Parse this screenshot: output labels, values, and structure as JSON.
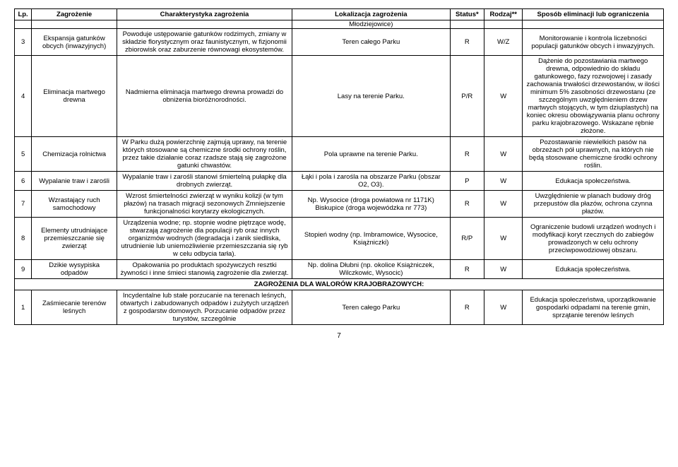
{
  "headers": {
    "lp": "Lp.",
    "zagrozenie": "Zagrożenie",
    "charakterystyka": "Charakterystyka zagrożenia",
    "lokalizacja": "Lokalizacja zagrożenia",
    "status": "Status*",
    "rodzaj": "Rodzaj**",
    "sposob": "Sposób eliminacji lub ograniczenia"
  },
  "prev_lok": "Młodziejowice)",
  "rows": [
    {
      "lp": "3",
      "zag": "Ekspansja gatunków obcych (inwazyjnych)",
      "char": "Powoduje ustępowanie gatunków rodzimych, zmiany w składzie florystycznym oraz faunistycznym, w fizjonomii zbiorowisk oraz zaburzenie równowagi ekosystemów.",
      "lok": "Teren całego Parku",
      "status": "R",
      "rodzaj": "W/Z",
      "spos": "Monitorowanie i kontrola liczebności populacji gatunków obcych i inwazyjnych."
    },
    {
      "lp": "4",
      "zag": "Eliminacja martwego drewna",
      "char": "Nadmierna eliminacja martwego drewna prowadzi do obniżenia bioróżnorodności.",
      "lok": "Lasy na terenie Parku.",
      "status": "P/R",
      "rodzaj": "W",
      "spos": "Dążenie do pozostawiania martwego drewna, odpowiednio do składu gatunkowego, fazy rozwojowej i zasady zachowania trwałości drzewostanów, w ilości minimum 5% zasobności drzewostanu (ze szczególnym uwzględnieniem drzew martwych stojących, w tym dziuplastych) na koniec okresu obowiązywania planu ochrony parku krajobrazowego. Wskazane rębnie złożone."
    },
    {
      "lp": "5",
      "zag": "Chemizacja rolnictwa",
      "char": "W Parku dużą powierzchnię zajmują uprawy, na terenie których stosowane są chemiczne środki ochrony roślin, przez takie działanie coraz rzadsze stają się zagrożone gatunki chwastów.",
      "lok": "Pola uprawne na terenie Parku.",
      "status": "R",
      "rodzaj": "W",
      "spos": "Pozostawanie niewielkich pasów na obrzeżach pół uprawnych, na których nie będą stosowane chemiczne środki ochrony roślin."
    },
    {
      "lp": "6",
      "zag": "Wypalanie traw i zarośli",
      "char": "Wypalanie traw i zarośli stanowi śmiertelną pułapkę dla drobnych zwierząt.",
      "lok": "Łąki i pola i zarośla na obszarze Parku (obszar O2, O3).",
      "status": "P",
      "rodzaj": "W",
      "spos": "Edukacja społeczeństwa."
    },
    {
      "lp": "7",
      "zag": "Wzrastający ruch samochodowy",
      "char": "Wzrost śmiertelności zwierząt w wyniku kolizji (w tym płazów) na trasach migracji sezonowych Zmniejszenie funkcjonalności korytarzy ekologicznych.",
      "lok": "Np. Wysocice (droga powiatowa nr 1171K) Biskupice (droga wojewódzka nr 773)",
      "status": "R",
      "rodzaj": "W",
      "spos": "Uwzględnienie w planach budowy dróg przepustów dla płazów, ochrona czynna płazów."
    },
    {
      "lp": "8",
      "zag": "Elementy utrudniające przemieszczanie się zwierząt",
      "char": "Urządzenia wodne; np. stopnie wodne piętrzące wodę, stwarzają zagrożenie dla populacji ryb oraz innych organizmów wodnych (degradacja i zanik siedliska, utrudnienie lub uniemożliwienie przemieszczania się ryb w celu odbycia tarła).",
      "lok": "Stopień wodny (np. Imbramowice, Wysocice, Książniczki)",
      "status": "R/P",
      "rodzaj": "W",
      "spos": "Ograniczenie budowli urządzeń wodnych i modyfikacji koryt rzecznych do zabiegów prowadzonych w celu ochrony przeciwpowodziowej obszaru."
    },
    {
      "lp": "9",
      "zag": "Dzikie wysypiska odpadów",
      "char": "Opakowania po produktach spożywczych resztki żywności i inne śmieci stanowią zagrożenie dla zwierząt.",
      "lok": "Np. dolina Dłubni (np. okolice Książniczek, Wilczkowic, Wysocic)",
      "status": "R",
      "rodzaj": "W",
      "spos": "Edukacja społeczeństwa."
    }
  ],
  "section2_title": "ZAGROŻENIA DLA WALORÓW KRAJOBRAZOWYCH:",
  "rows2": [
    {
      "lp": "1",
      "zag": "Zaśmiecanie terenów leśnych",
      "char": "Incydentalne lub stałe porzucanie na terenach leśnych, otwartych i zabudowanych odpadów i zużytych urządzeń z gospodarstw domowych. Porzucanie odpadów przez turystów, szczególnie",
      "lok": "Teren całego Parku",
      "status": "R",
      "rodzaj": "W",
      "spos": "Edukacja społeczeństwa, uporządkowanie gospodarki odpadami na terenie gmin, sprzątanie terenów leśnych"
    }
  ],
  "page_number": "7",
  "style": {
    "font_family": "Arial, sans-serif",
    "font_size_pt": 9.5,
    "border_color": "#000000",
    "background": "#ffffff",
    "text_color": "#000000"
  }
}
